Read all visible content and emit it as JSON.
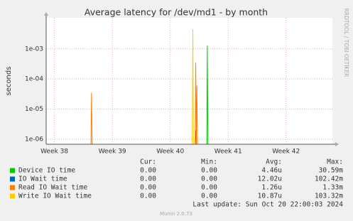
{
  "chart_data": {
    "type": "line",
    "title": "Average latency for /dev/md1 - by month",
    "y_label": "seconds",
    "side_text": "RRDTOOL / TOBI OETIKER",
    "log_scale": true,
    "grid": true,
    "xlim": [
      37.857,
      42.8
    ],
    "xticks": [
      {
        "value": 38,
        "label": "Week 38"
      },
      {
        "value": 39,
        "label": "Week 39"
      },
      {
        "value": 40,
        "label": "Week 40"
      },
      {
        "value": 41,
        "label": "Week 41"
      },
      {
        "value": 42,
        "label": "Week 42"
      }
    ],
    "ylim": [
      6.8e-07,
      0.0108
    ],
    "yticks": [
      {
        "value": 1e-06,
        "label": "1e-06"
      },
      {
        "value": 1e-05,
        "label": "1e-05"
      },
      {
        "value": 0.0001,
        "label": "1e-04"
      },
      {
        "value": 0.001,
        "label": "1e-03"
      }
    ],
    "x": [
      38.63,
      38.64,
      38.65,
      40.38,
      40.39,
      40.4,
      40.43,
      40.44,
      40.45,
      40.46,
      40.47,
      40.63,
      40.64,
      40.65
    ],
    "series": [
      {
        "name": "Device IO time",
        "color": "#00cc00",
        "values": [
          null,
          null,
          null,
          null,
          null,
          null,
          null,
          null,
          null,
          null,
          null,
          7e-07,
          0.0013,
          7e-07
        ]
      },
      {
        "name": "IO Wait time",
        "color": "#0066b3",
        "values": [
          null,
          null,
          null,
          null,
          null,
          null,
          7e-07,
          2e-06,
          7e-07,
          null,
          null,
          null,
          null,
          null
        ]
      },
      {
        "name": "Read IO Wait time",
        "color": "#ff8000",
        "values": [
          7e-07,
          3.5e-05,
          7e-07,
          null,
          null,
          null,
          7e-07,
          0.00035,
          7e-07,
          6e-05,
          7e-07,
          null,
          null,
          null
        ]
      },
      {
        "name": "Write IO Wait time",
        "color": "#ffcc00",
        "values": [
          null,
          null,
          null,
          7e-07,
          0.0045,
          7e-07,
          null,
          null,
          null,
          null,
          null,
          null,
          null,
          null
        ]
      }
    ],
    "legend_table": {
      "headers": [
        "Cur:",
        "Min:",
        "Avg:",
        "Max:"
      ],
      "rows": [
        [
          "0.00",
          "0.00",
          "4.46u",
          "30.59m"
        ],
        [
          "0.00",
          "0.00",
          "12.02u",
          "102.42m"
        ],
        [
          "0.00",
          "0.00",
          "1.26u",
          "1.33m"
        ],
        [
          "0.00",
          "0.00",
          "10.87u",
          "103.32m"
        ]
      ]
    },
    "last_update": "Last update: Sun Oct 20 22:00:03 2024",
    "footer": "Munin 2.0.73"
  }
}
